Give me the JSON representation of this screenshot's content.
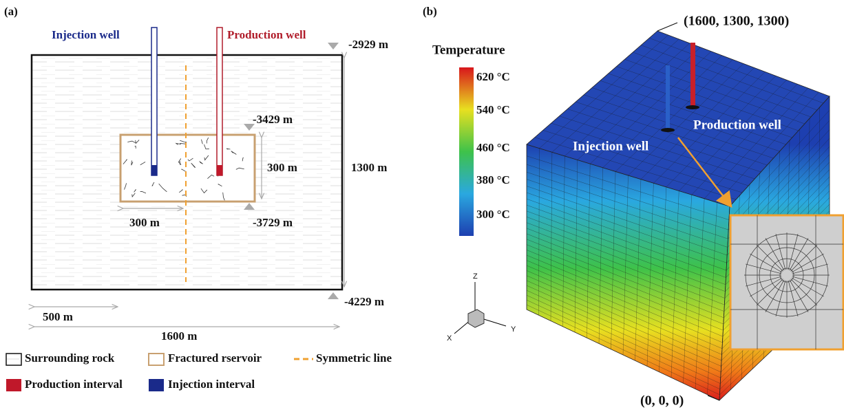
{
  "panel_a": {
    "label": "(a)",
    "wells": {
      "injection": "Injection well",
      "production": "Production well"
    },
    "depths": {
      "top": "-2929 m",
      "reservoir_top": "-3429 m",
      "reservoir_bottom": "-3729 m",
      "bottom": "-4229 m"
    },
    "dimensions": {
      "reservoir_height": "300 m",
      "reservoir_half_width": "300 m",
      "total_height": "1300 m",
      "offset": "500 m",
      "total_width": "1600 m"
    },
    "legend": {
      "surrounding_rock": "Surrounding rock",
      "fractured_reservoir": "Fractured rservoir",
      "symmetric_line": "Symmetric line",
      "production_interval": "Production interval",
      "injection_interval": "Injection interval"
    }
  },
  "panel_b": {
    "label": "(b)",
    "colorbar_title": "Temperature",
    "colorbar_labels": [
      "620 °C",
      "540 °C",
      "460 °C",
      "380 °C",
      "300 °C"
    ],
    "wells": {
      "production": "Production well",
      "injection": "Injection well"
    },
    "corners": {
      "top": "(1600, 1300, 1300)",
      "origin": "(0, 0, 0)"
    },
    "axes": {
      "x": "X",
      "y": "Y",
      "z": "Z"
    }
  }
}
